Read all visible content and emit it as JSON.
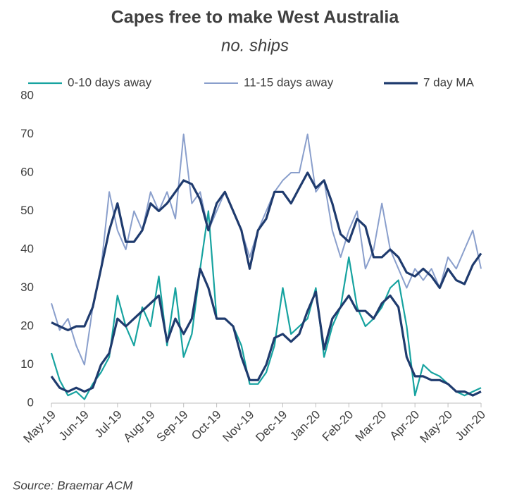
{
  "chart_data": {
    "type": "line",
    "title": "Capes free to make West Australia",
    "subtitle": "no. ships",
    "source": "Source: Braemar ACM",
    "categories": [
      "May-19",
      null,
      null,
      null,
      "Jun-19",
      null,
      null,
      null,
      "Jul-19",
      null,
      null,
      null,
      "Aug-19",
      null,
      null,
      null,
      "Sep-19",
      null,
      null,
      null,
      "Oct-19",
      null,
      null,
      null,
      "Nov-19",
      null,
      null,
      null,
      "Dec-19",
      null,
      null,
      null,
      "Jan-20",
      null,
      null,
      null,
      "Feb-20",
      null,
      null,
      null,
      "Mar-20",
      null,
      null,
      null,
      "Apr-20",
      null,
      null,
      null,
      "May-20",
      null,
      null,
      null,
      "Jun-20"
    ],
    "series": [
      {
        "name": "0-10 days away",
        "color": "#17a3a0",
        "width": 2.2,
        "values": [
          13,
          6,
          2,
          3,
          1,
          5,
          8,
          12,
          28,
          20,
          15,
          25,
          20,
          33,
          15,
          30,
          12,
          18,
          35,
          50,
          22,
          22,
          20,
          15,
          5,
          5,
          8,
          15,
          30,
          18,
          20,
          22,
          30,
          12,
          20,
          25,
          38,
          25,
          20,
          22,
          25,
          30,
          32,
          20,
          2,
          10,
          8,
          7,
          5,
          3,
          2,
          3,
          4
        ]
      },
      {
        "name": "11-15 days away",
        "color": "#8a9fcc",
        "width": 2,
        "values": [
          26,
          19,
          22,
          15,
          10,
          25,
          35,
          55,
          45,
          40,
          50,
          45,
          55,
          50,
          55,
          48,
          70,
          52,
          55,
          45,
          50,
          55,
          50,
          45,
          38,
          45,
          50,
          55,
          58,
          60,
          60,
          70,
          55,
          58,
          45,
          38,
          45,
          50,
          35,
          40,
          52,
          40,
          35,
          30,
          35,
          32,
          35,
          30,
          38,
          35,
          40,
          45,
          35
        ]
      },
      {
        "name": "7 day MA",
        "color": "#1f3b6e",
        "width": 3.2,
        "values": [
          7,
          4,
          3,
          4,
          3,
          4,
          10,
          13,
          22,
          20,
          22,
          24,
          26,
          28,
          16,
          22,
          18,
          22,
          35,
          30,
          22,
          22,
          20,
          12,
          6,
          6,
          10,
          17,
          18,
          16,
          18,
          24,
          29,
          14,
          22,
          25,
          28,
          24,
          24,
          22,
          26,
          28,
          25,
          12,
          7,
          7,
          6,
          6,
          5,
          3,
          3,
          2,
          3
        ]
      },
      {
        "name": "7 day MA",
        "color": "#1f3b6e",
        "width": 3.2,
        "values": [
          21,
          20,
          19,
          20,
          20,
          25,
          35,
          45,
          52,
          42,
          42,
          45,
          52,
          50,
          52,
          55,
          58,
          57,
          53,
          45,
          52,
          55,
          50,
          45,
          35,
          45,
          48,
          55,
          55,
          52,
          56,
          60,
          56,
          58,
          52,
          44,
          42,
          48,
          46,
          38,
          38,
          40,
          38,
          34,
          33,
          35,
          33,
          30,
          35,
          32,
          31,
          36,
          39
        ]
      }
    ],
    "ylim": [
      0,
      80
    ],
    "yticks": [
      0,
      10,
      20,
      30,
      40,
      50,
      60,
      70,
      80
    ],
    "grid": false
  }
}
